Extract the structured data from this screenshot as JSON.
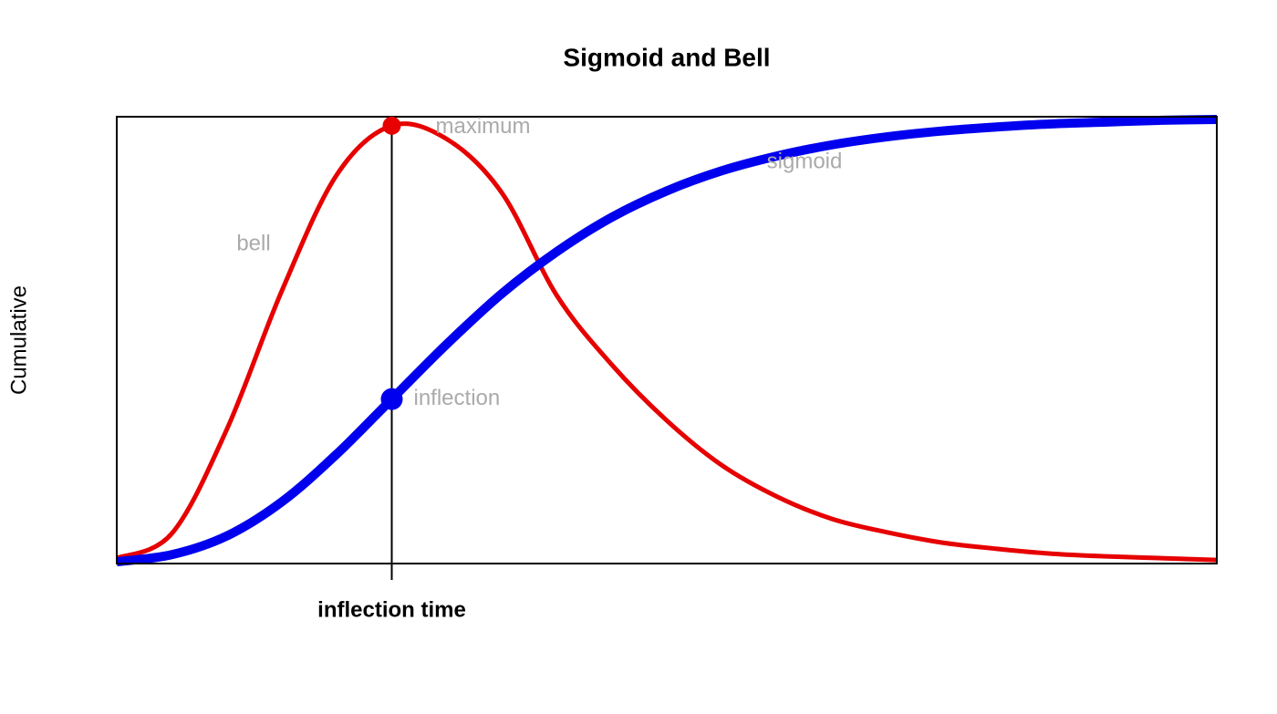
{
  "chart_data": {
    "type": "line",
    "title": "Sigmoid and Bell",
    "ylabel": "Cumulative",
    "x": [
      0,
      0.05,
      0.1,
      0.15,
      0.2,
      0.25,
      0.3,
      0.35,
      0.4,
      0.45,
      0.5,
      0.55,
      0.6,
      0.65,
      0.7,
      0.75,
      0.8,
      0.85,
      0.9,
      0.95,
      1
    ],
    "series": [
      {
        "name": "bell",
        "color": "#e60000",
        "values": [
          0.012,
          0.067,
          0.3,
          0.61,
          0.87,
          0.98,
          0.95,
          0.83,
          0.6,
          0.445,
          0.32,
          0.22,
          0.15,
          0.1,
          0.07,
          0.047,
          0.033,
          0.022,
          0.016,
          0.012,
          0.008
        ]
      },
      {
        "name": "sigmoid",
        "color": "#0000ee",
        "values": [
          0.004,
          0.0198,
          0.0617,
          0.138,
          0.245,
          0.368,
          0.491,
          0.604,
          0.698,
          0.775,
          0.834,
          0.879,
          0.912,
          0.937,
          0.955,
          0.968,
          0.977,
          0.984,
          0.988,
          0.992,
          0.994
        ]
      }
    ],
    "annotations": [
      "maximum",
      "inflection"
    ],
    "xlim": [
      0,
      1
    ],
    "ylim": [
      0,
      1
    ],
    "xticks": [
      {
        "value": 0.25,
        "label": "inflection time"
      }
    ]
  }
}
